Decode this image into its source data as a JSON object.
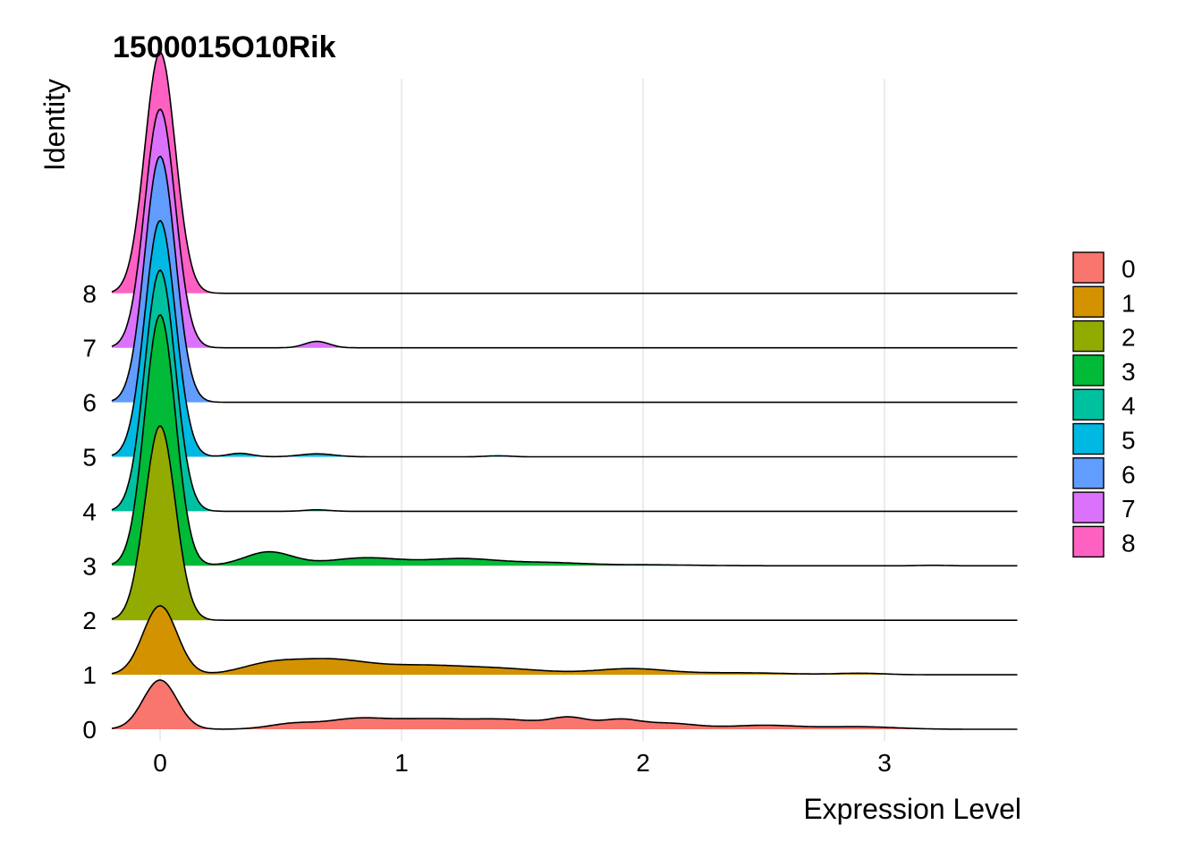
{
  "chart_data": {
    "type": "ridgeline",
    "title": "1500015O10Rik",
    "xlabel": "Expression Level",
    "ylabel": "Identity",
    "xlim": [
      -0.2,
      3.55
    ],
    "x_ticks": [
      0,
      1,
      2,
      3
    ],
    "categories": [
      "0",
      "1",
      "2",
      "3",
      "4",
      "5",
      "6",
      "7",
      "8"
    ],
    "grid": true,
    "legend": {
      "position": "right",
      "entries": [
        "0",
        "1",
        "2",
        "3",
        "4",
        "5",
        "6",
        "7",
        "8"
      ]
    },
    "colors": [
      "#F8766D",
      "#D39200",
      "#93AA00",
      "#00BA38",
      "#00C19F",
      "#00B9E3",
      "#619CFF",
      "#DB72FB",
      "#FF61C3"
    ],
    "densities": [
      {
        "category": "0",
        "peak_x": 0.0,
        "peak_height": 1.0,
        "sigma": 0.07,
        "x_max": 3.55,
        "bumps": [
          [
            0.55,
            0.11,
            0.1
          ],
          [
            0.8,
            0.17,
            0.12
          ],
          [
            1.1,
            0.2,
            0.18
          ],
          [
            1.45,
            0.17,
            0.15
          ],
          [
            1.7,
            0.2,
            0.08
          ],
          [
            1.9,
            0.17,
            0.08
          ],
          [
            2.1,
            0.12,
            0.12
          ],
          [
            2.5,
            0.08,
            0.15
          ],
          [
            2.9,
            0.05,
            0.15
          ]
        ]
      },
      {
        "category": "1",
        "peak_x": 0.0,
        "peak_height": 1.4,
        "sigma": 0.07,
        "x_max": 3.55,
        "bumps": [
          [
            0.45,
            0.2,
            0.12
          ],
          [
            0.7,
            0.28,
            0.15
          ],
          [
            1.05,
            0.16,
            0.18
          ],
          [
            1.4,
            0.12,
            0.2
          ],
          [
            1.95,
            0.12,
            0.15
          ],
          [
            2.4,
            0.04,
            0.2
          ],
          [
            2.9,
            0.03,
            0.1
          ]
        ]
      },
      {
        "category": "2",
        "peak_x": 0.0,
        "peak_height": 3.95,
        "sigma": 0.063,
        "x_max": 3.55,
        "bumps": []
      },
      {
        "category": "3",
        "peak_x": 0.0,
        "peak_height": 5.1,
        "sigma": 0.063,
        "x_max": 3.55,
        "bumps": [
          [
            0.45,
            0.28,
            0.1
          ],
          [
            0.85,
            0.16,
            0.15
          ],
          [
            1.25,
            0.14,
            0.15
          ],
          [
            1.6,
            0.06,
            0.15
          ],
          [
            2.0,
            0.02,
            0.2
          ],
          [
            3.2,
            0.01,
            0.05
          ]
        ]
      },
      {
        "category": "4",
        "peak_x": 0.0,
        "peak_height": 4.9,
        "sigma": 0.063,
        "x_max": 3.55,
        "bumps": [
          [
            0.65,
            0.03,
            0.05
          ]
        ]
      },
      {
        "category": "5",
        "peak_x": 0.0,
        "peak_height": 4.8,
        "sigma": 0.063,
        "x_max": 3.55,
        "bumps": [
          [
            0.33,
            0.07,
            0.05
          ],
          [
            0.65,
            0.06,
            0.07
          ],
          [
            1.4,
            0.02,
            0.05
          ]
        ]
      },
      {
        "category": "6",
        "peak_x": 0.0,
        "peak_height": 5.0,
        "sigma": 0.063,
        "x_max": 3.55,
        "bumps": []
      },
      {
        "category": "7",
        "peak_x": 0.0,
        "peak_height": 4.85,
        "sigma": 0.063,
        "x_max": 3.55,
        "bumps": [
          [
            0.65,
            0.13,
            0.05
          ]
        ]
      },
      {
        "category": "8",
        "peak_x": 0.0,
        "peak_height": 4.9,
        "sigma": 0.063,
        "x_max": 3.55,
        "bumps": []
      }
    ]
  }
}
